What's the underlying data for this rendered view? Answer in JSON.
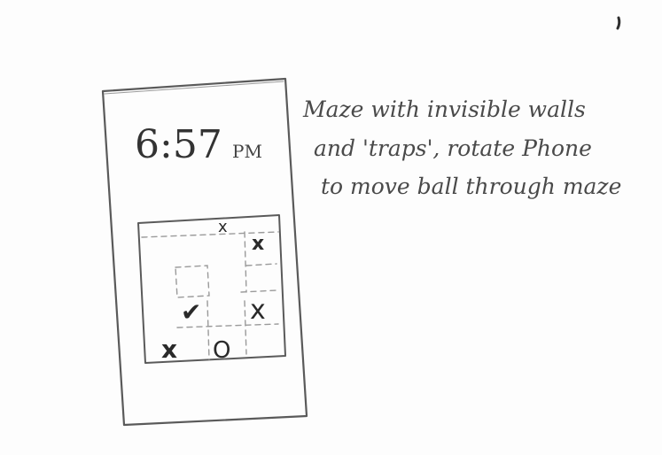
{
  "phone": {
    "clock_time": "6:57",
    "clock_ampm": "PM"
  },
  "maze": {
    "trap_symbol": "x",
    "goal_symbol": "✔",
    "ball_symbol": "O"
  },
  "annotation": {
    "lines": [
      "Maze with invisible walls",
      "and 'traps', rotate Phone",
      "to move ball through maze"
    ]
  },
  "colors": {
    "pencil": "#5a5a5a",
    "pencil_dark": "#2e2e2e",
    "paper": "#fdfdfd"
  }
}
